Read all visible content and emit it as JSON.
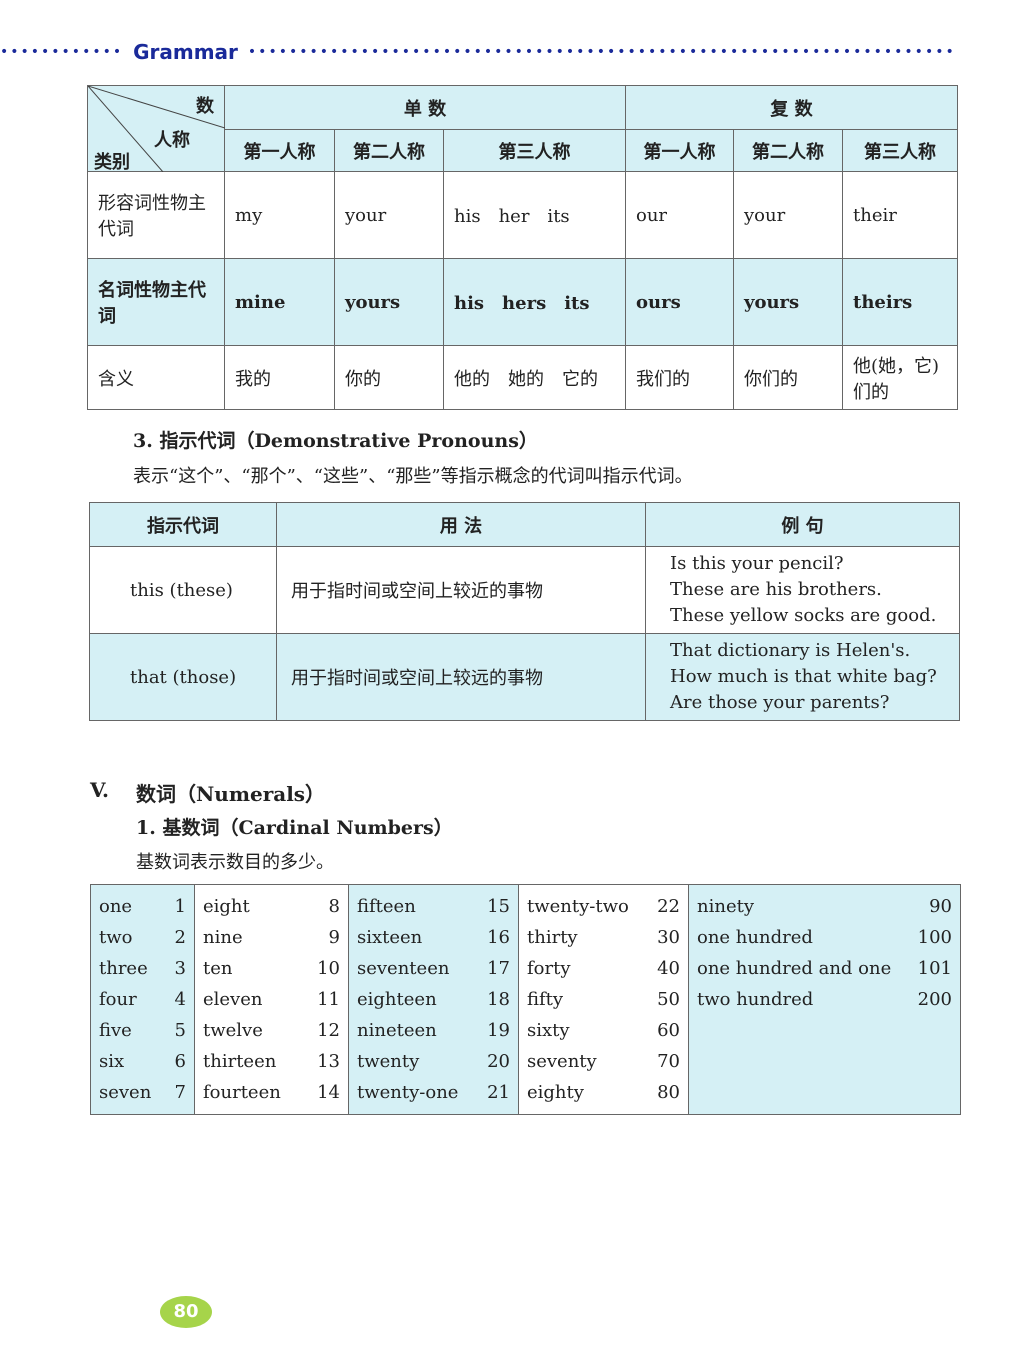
{
  "header": {
    "section": "Grammar"
  },
  "pronoun_table": {
    "corner": {
      "number": "数",
      "person": "人称",
      "category": "类别"
    },
    "singular": "单 数",
    "plural": "复 数",
    "persons": [
      "第一人称",
      "第二人称",
      "第三人称",
      "第一人称",
      "第二人称",
      "第三人称"
    ],
    "rows": [
      {
        "label": "形容词性物主代词",
        "cells": [
          "my",
          "your",
          "his　her　its",
          "our",
          "your",
          "their"
        ]
      },
      {
        "label": "名词性物主代词",
        "cells": [
          "mine",
          "yours",
          "his　hers　its",
          "ours",
          "yours",
          "theirs"
        ]
      },
      {
        "label": "含义",
        "cells": [
          "我的",
          "你的",
          "他的　她的　它的",
          "我们的",
          "你们的",
          "他(她，它)们的"
        ]
      }
    ]
  },
  "demonstrative": {
    "heading": "3. 指示代词（Demonstrative Pronouns）",
    "desc": "表示“这个”、“那个”、“这些”、“那些”等指示概念的代词叫指示代词。",
    "headers": [
      "指示代词",
      "用 法",
      "例 句"
    ],
    "rows": [
      {
        "word": "this (these)",
        "usage": "用于指时间或空间上较近的事物",
        "examples": [
          "Is this your pencil?",
          "These are his brothers.",
          "These yellow socks are good."
        ]
      },
      {
        "word": "that (those)",
        "usage": "用于指时间或空间上较远的事物",
        "examples": [
          "That dictionary is Helen's.",
          "How much is that white bag?",
          "Are those your parents?"
        ]
      }
    ]
  },
  "numerals": {
    "heading_num": "V.",
    "heading": "数词（Numerals）",
    "sub": "1. 基数词（Cardinal Numbers）",
    "desc": "基数词表示数目的多少。",
    "columns": [
      [
        [
          "one",
          "1"
        ],
        [
          "two",
          "2"
        ],
        [
          "three",
          "3"
        ],
        [
          "four",
          "4"
        ],
        [
          "five",
          "5"
        ],
        [
          "six",
          "6"
        ],
        [
          "seven",
          "7"
        ]
      ],
      [
        [
          "eight",
          "8"
        ],
        [
          "nine",
          "9"
        ],
        [
          "ten",
          "10"
        ],
        [
          "eleven",
          "11"
        ],
        [
          "twelve",
          "12"
        ],
        [
          "thirteen",
          "13"
        ],
        [
          "fourteen",
          "14"
        ]
      ],
      [
        [
          "fifteen",
          "15"
        ],
        [
          "sixteen",
          "16"
        ],
        [
          "seventeen",
          "17"
        ],
        [
          "eighteen",
          "18"
        ],
        [
          "nineteen",
          "19"
        ],
        [
          "twenty",
          "20"
        ],
        [
          "twenty-one",
          "21"
        ]
      ],
      [
        [
          "twenty-two",
          "22"
        ],
        [
          "thirty",
          "30"
        ],
        [
          "forty",
          "40"
        ],
        [
          "fifty",
          "50"
        ],
        [
          "sixty",
          "60"
        ],
        [
          "seventy",
          "70"
        ],
        [
          "eighty",
          "80"
        ]
      ],
      [
        [
          "ninety",
          "90"
        ],
        [
          "one hundred",
          "100"
        ],
        [
          "one hundred and one",
          "101"
        ],
        [
          "two hundred",
          "200"
        ]
      ]
    ]
  },
  "page_number": "80"
}
